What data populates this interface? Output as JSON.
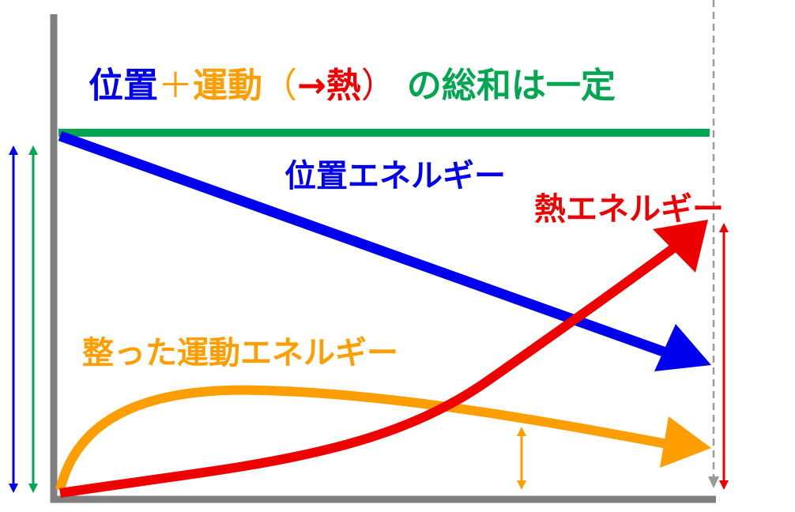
{
  "title": {
    "part_potential": "位置",
    "plus": "＋",
    "part_motion": "運動",
    "paren_open": "（",
    "arrow": "→",
    "part_heat": "熱",
    "paren_close": "）",
    "part_rest": "の総和は一定"
  },
  "labels": {
    "potential": "位置エネルギー",
    "heat": "熱エネルギー",
    "motion": "整った運動エネルギー"
  },
  "colors": {
    "potential": "#0000ee",
    "motion": "#ff9e00",
    "heat": "#ee0000",
    "total": "#00a650",
    "axis": "#808080"
  }
}
